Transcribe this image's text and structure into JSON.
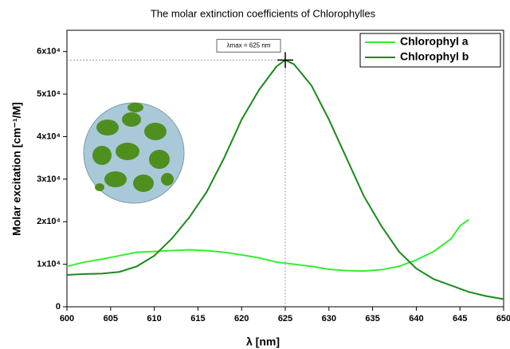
{
  "chart_data": {
    "type": "line",
    "title": "The molar extinction coefficients of Chlorophylles",
    "xlabel": "λ [nm]",
    "ylabel": "Molar excitation [cm⁻¹/M]",
    "xlim": [
      600,
      650
    ],
    "ylim": [
      0,
      65000
    ],
    "xticks": [
      600,
      605,
      610,
      615,
      620,
      625,
      630,
      635,
      640,
      645,
      650
    ],
    "yticks": [
      0,
      {
        "value": 10000,
        "label": "1x10⁴"
      },
      {
        "value": 20000,
        "label": "2x10⁴"
      },
      {
        "value": 30000,
        "label": "3x10⁴"
      },
      {
        "value": 40000,
        "label": "4x10⁴"
      },
      {
        "value": 50000,
        "label": "5x10⁴"
      },
      {
        "value": 60000,
        "label": "6x10⁴"
      }
    ],
    "legend": "upper right",
    "annotation": {
      "text": "λmax = 625 nm",
      "x": 625,
      "y": 58000
    },
    "series": [
      {
        "name": "Chlorophyl a",
        "color": "#33ee33",
        "x": [
          600,
          602,
          604,
          606,
          608,
          610,
          612,
          614,
          616,
          618,
          620,
          622,
          624,
          626,
          628,
          630,
          632,
          634,
          636,
          638,
          640,
          642,
          644,
          645,
          646
        ],
        "values": [
          9500,
          10500,
          11200,
          12000,
          12800,
          13000,
          13200,
          13400,
          13200,
          12800,
          12200,
          11500,
          10500,
          10000,
          9500,
          8800,
          8500,
          8400,
          8700,
          9500,
          11000,
          13000,
          16000,
          19000,
          20500
        ]
      },
      {
        "name": "Chlorophyl b",
        "color": "#1a8a1a",
        "x": [
          600,
          602,
          604,
          606,
          608,
          610,
          612,
          614,
          616,
          618,
          620,
          622,
          624,
          625,
          626,
          628,
          630,
          632,
          634,
          636,
          638,
          640,
          642,
          644,
          646,
          648,
          650
        ],
        "values": [
          7500,
          7700,
          7800,
          8200,
          9500,
          12000,
          16000,
          21000,
          27000,
          35000,
          44000,
          51000,
          56500,
          58000,
          57000,
          52000,
          44000,
          35000,
          26000,
          19000,
          13000,
          9000,
          6500,
          5000,
          3500,
          2500,
          1800
        ]
      }
    ]
  }
}
